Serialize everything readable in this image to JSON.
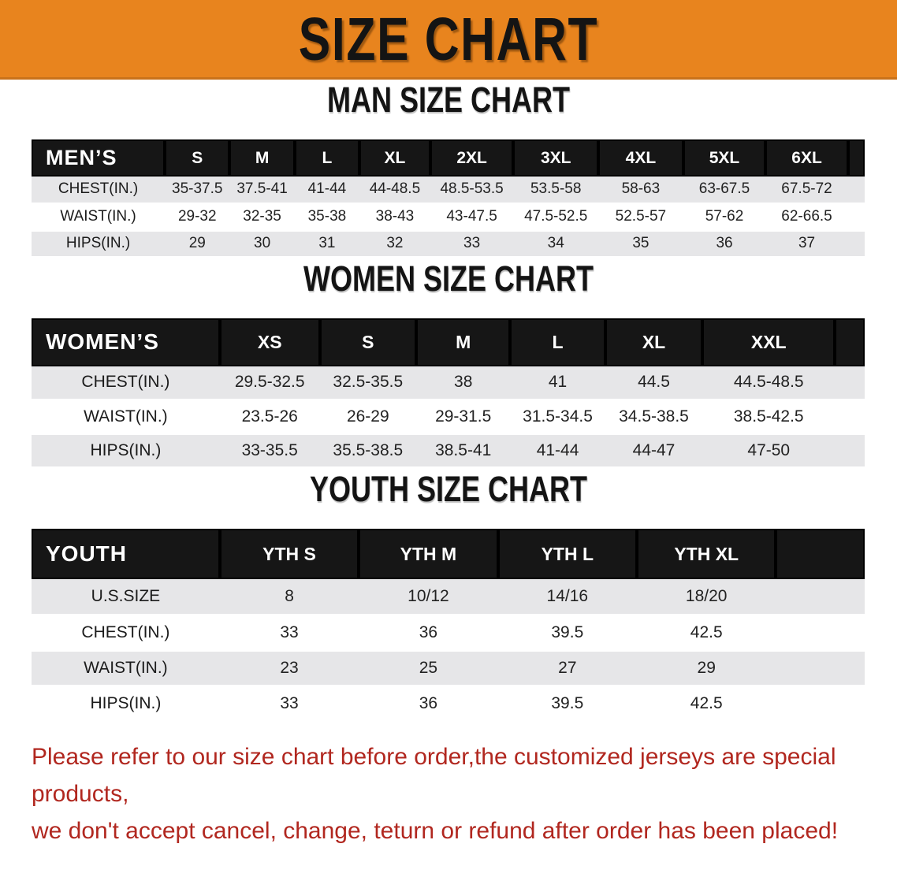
{
  "banner": {
    "title": "SIZE CHART"
  },
  "colors": {
    "accent": "#e8841e",
    "bar": "#161616",
    "stripe": "#e6e6e8",
    "note": "#b1271f"
  },
  "sections": [
    {
      "id": "men",
      "title": "MAN SIZE CHART",
      "header_label": "MEN’S",
      "columns": [
        "S",
        "M",
        "L",
        "XL",
        "2XL",
        "3XL",
        "4XL",
        "5XL",
        "6XL"
      ],
      "rows": [
        {
          "label": "CHEST(IN.)",
          "values": [
            "35-37.5",
            "37.5-41",
            "41-44",
            "44-48.5",
            "48.5-53.5",
            "53.5-58",
            "58-63",
            "63-67.5",
            "67.5-72"
          ]
        },
        {
          "label": "WAIST(IN.)",
          "values": [
            "29-32",
            "32-35",
            "35-38",
            "38-43",
            "43-47.5",
            "47.5-52.5",
            "52.5-57",
            "57-62",
            "62-66.5"
          ]
        },
        {
          "label": "HIPS(IN.)",
          "values": [
            "29",
            "30",
            "31",
            "32",
            "33",
            "34",
            "35",
            "36",
            "37"
          ]
        }
      ]
    },
    {
      "id": "women",
      "title": "WOMEN SIZE CHART",
      "header_label": "WOMEN’S",
      "columns": [
        "XS",
        "S",
        "M",
        "L",
        "XL",
        "XXL"
      ],
      "rows": [
        {
          "label": "CHEST(IN.)",
          "values": [
            "29.5-32.5",
            "32.5-35.5",
            "38",
            "41",
            "44.5",
            "44.5-48.5"
          ]
        },
        {
          "label": "WAIST(IN.)",
          "values": [
            "23.5-26",
            "26-29",
            "29-31.5",
            "31.5-34.5",
            "34.5-38.5",
            "38.5-42.5"
          ]
        },
        {
          "label": "HIPS(IN.)",
          "values": [
            "33-35.5",
            "35.5-38.5",
            "38.5-41",
            "41-44",
            "44-47",
            "47-50"
          ]
        }
      ]
    },
    {
      "id": "youth",
      "title": "YOUTH SIZE CHART",
      "header_label": "YOUTH",
      "columns": [
        "YTH S",
        "YTH M",
        "YTH L",
        "YTH XL"
      ],
      "rows": [
        {
          "label": "U.S.SIZE",
          "values": [
            "8",
            "10/12",
            "14/16",
            "18/20"
          ]
        },
        {
          "label": "CHEST(IN.)",
          "values": [
            "33",
            "36",
            "39.5",
            "42.5"
          ]
        },
        {
          "label": "WAIST(IN.)",
          "values": [
            "23",
            "25",
            "27",
            "29"
          ]
        },
        {
          "label": "HIPS(IN.)",
          "values": [
            "33",
            "36",
            "39.5",
            "42.5"
          ]
        }
      ]
    }
  ],
  "footer": {
    "line1": "Please refer to our size chart before order,the customized jerseys are special products,",
    "line2": "we don't accept cancel, change, teturn or refund after order has been placed!"
  }
}
